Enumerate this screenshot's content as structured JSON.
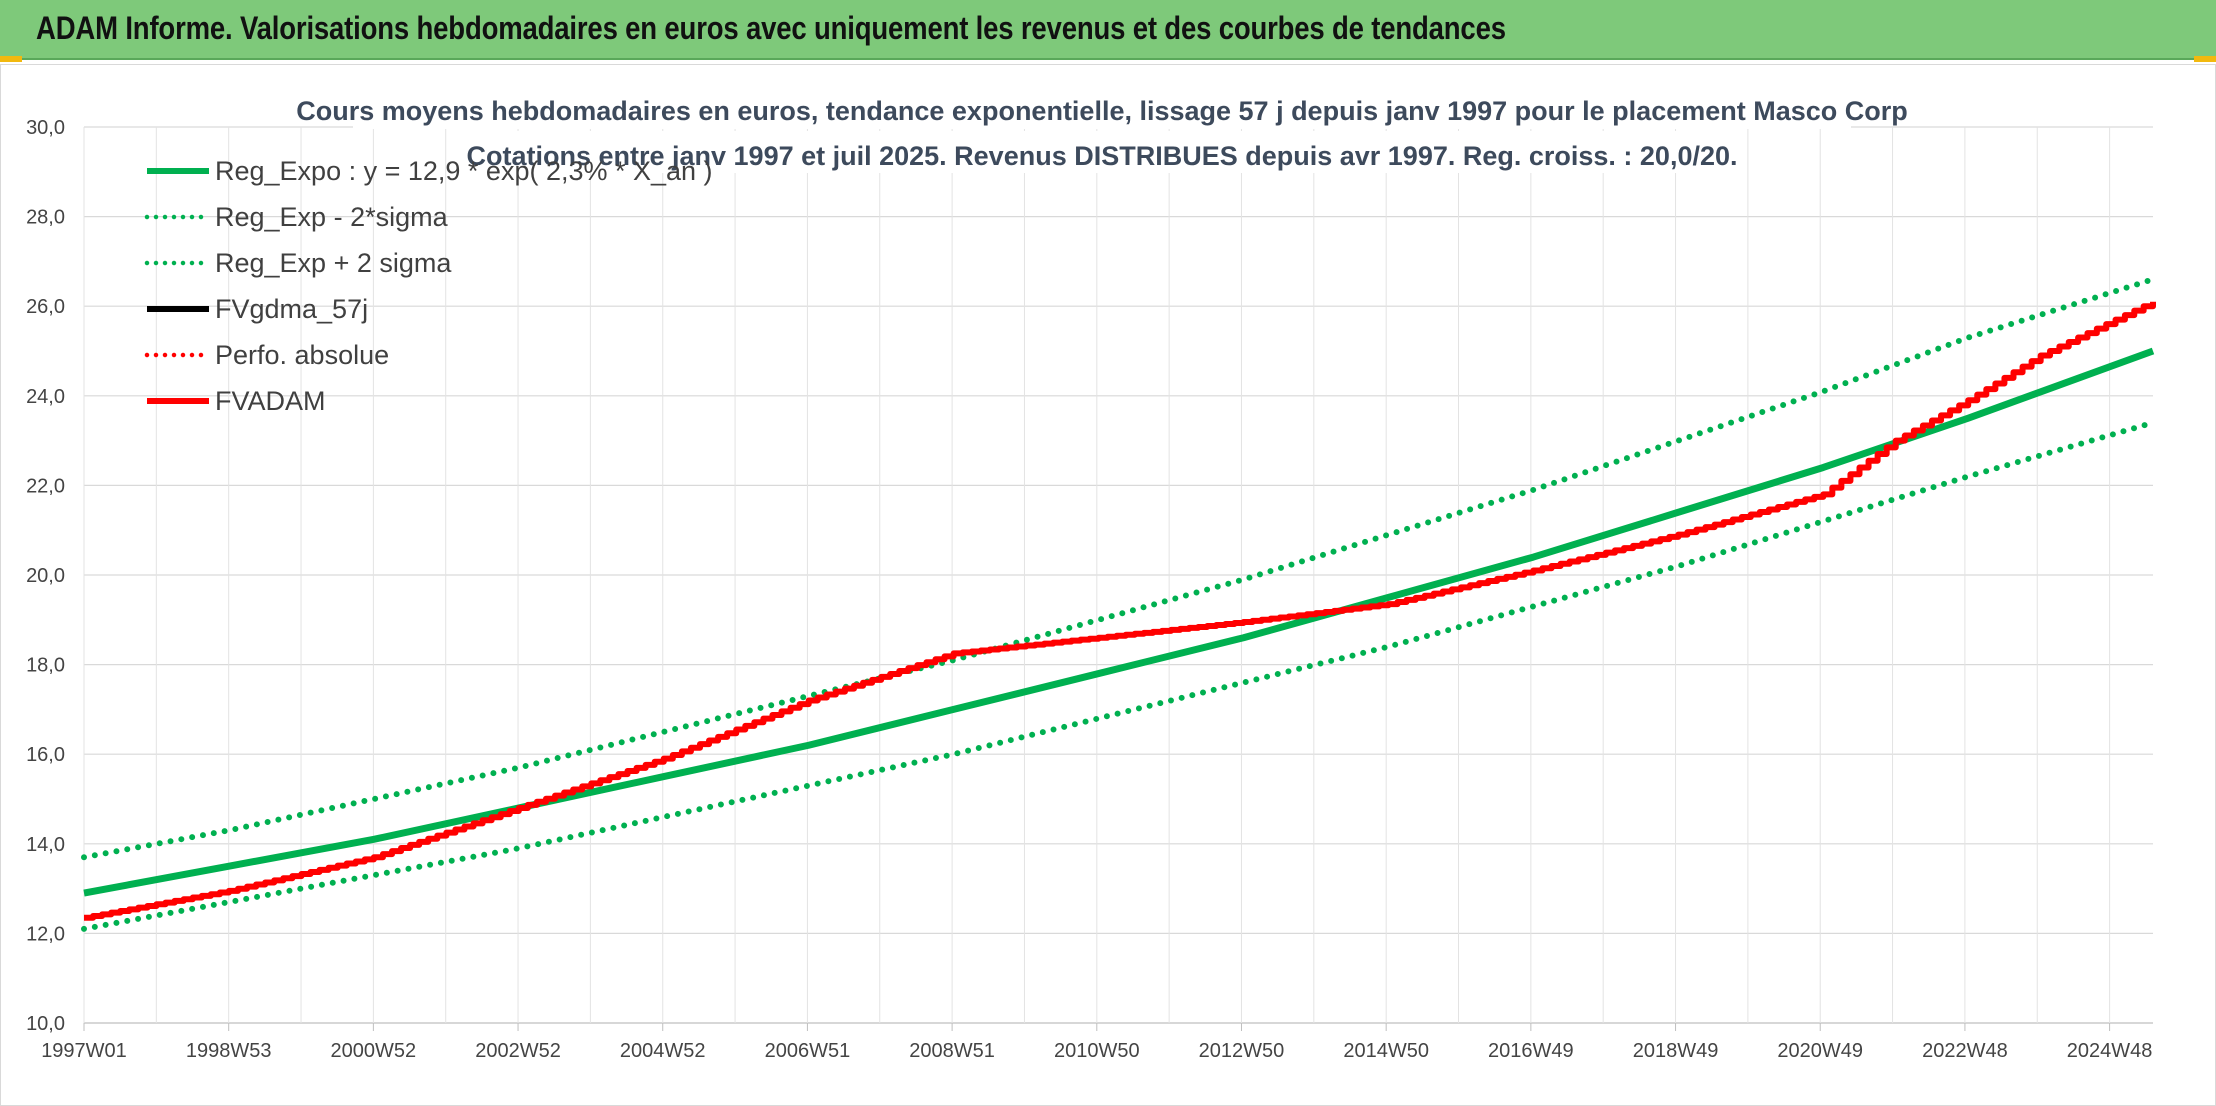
{
  "header": {
    "title": "ADAM Informe. Valorisations hebdomadaires en euros avec uniquement les revenus et des courbes de tendances"
  },
  "chart_data": {
    "type": "line",
    "title": "Cours moyens hebdomadaires en euros, tendance exponentielle, lissage 57 j depuis janv 1997 pour le placement Masco Corp",
    "subtitle": "Cotations entre janv 1997 et juil 2025. Revenus DISTRIBUES depuis avr 1997. Reg. croiss. : 20,0/20.",
    "xlabel": "",
    "ylabel": "",
    "ylim": [
      10,
      30
    ],
    "y_ticks": [
      "10,0",
      "12,0",
      "14,0",
      "16,0",
      "18,0",
      "20,0",
      "22,0",
      "24,0",
      "26,0",
      "28,0",
      "30,0"
    ],
    "x_tick_labels": [
      "1997W01",
      "1998W53",
      "2000W52",
      "2002W52",
      "2004W52",
      "2006W51",
      "2008W51",
      "2010W50",
      "2012W50",
      "2014W50",
      "2016W49",
      "2018W49",
      "2020W49",
      "2022W48",
      "2024W48"
    ],
    "x_range": [
      1997.0,
      2025.55
    ],
    "grid": true,
    "legend_position": "top-left",
    "series": [
      {
        "name": "Reg_Expo : y = 12,9 * exp( 2,3% *  X_an )",
        "color": "#00b050",
        "style": "solid",
        "x": [
          1997.0,
          1999.0,
          2001.0,
          2003.0,
          2005.0,
          2007.0,
          2009.0,
          2011.0,
          2013.0,
          2015.0,
          2017.0,
          2019.0,
          2021.0,
          2023.0,
          2025.55
        ],
        "y": [
          12.9,
          13.5,
          14.1,
          14.8,
          15.5,
          16.2,
          17.0,
          17.8,
          18.6,
          19.5,
          20.4,
          21.4,
          22.4,
          23.5,
          25.0
        ]
      },
      {
        "name": "Reg_Exp - 2*sigma",
        "color": "#00b050",
        "style": "dotted",
        "x": [
          1997.0,
          1999.0,
          2001.0,
          2003.0,
          2005.0,
          2007.0,
          2009.0,
          2011.0,
          2013.0,
          2015.0,
          2017.0,
          2019.0,
          2021.0,
          2023.0,
          2025.55
        ],
        "y": [
          12.1,
          12.7,
          13.3,
          13.9,
          14.6,
          15.3,
          16.0,
          16.8,
          17.6,
          18.4,
          19.3,
          20.2,
          21.2,
          22.2,
          23.4
        ]
      },
      {
        "name": "Reg_Exp + 2 sigma",
        "color": "#00b050",
        "style": "dotted",
        "x": [
          1997.0,
          1999.0,
          2001.0,
          2003.0,
          2005.0,
          2007.0,
          2009.0,
          2011.0,
          2013.0,
          2015.0,
          2017.0,
          2019.0,
          2021.0,
          2023.0,
          2025.55
        ],
        "y": [
          13.7,
          14.3,
          15.0,
          15.7,
          16.5,
          17.3,
          18.1,
          19.0,
          19.9,
          20.9,
          21.9,
          23.0,
          24.1,
          25.3,
          26.6
        ]
      },
      {
        "name": "FVgdma_57j",
        "color": "#000000",
        "style": "solid",
        "x": [],
        "y": []
      },
      {
        "name": "Perfo. absolue",
        "color": "#ff0000",
        "style": "dotted",
        "x": [],
        "y": []
      },
      {
        "name": "FVADAM",
        "color": "#ff0000",
        "style": "solid",
        "x": [
          1997.0,
          1999.0,
          2001.0,
          2003.0,
          2005.0,
          2007.0,
          2009.0,
          2011.0,
          2013.0,
          2015.0,
          2017.0,
          2019.0,
          2021.0,
          2022.0,
          2023.0,
          2024.0,
          2025.55
        ],
        "y": [
          12.35,
          12.95,
          13.7,
          14.8,
          15.9,
          17.2,
          18.25,
          18.6,
          18.95,
          19.35,
          20.1,
          20.9,
          21.8,
          23.0,
          23.9,
          24.9,
          26.1
        ]
      }
    ]
  }
}
